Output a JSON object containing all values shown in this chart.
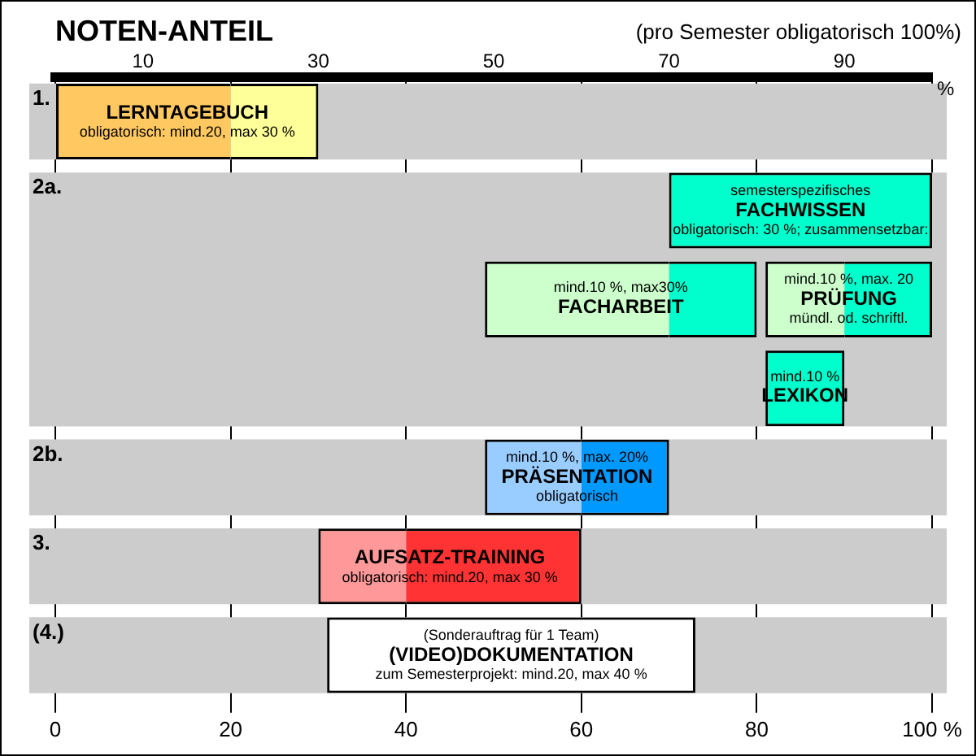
{
  "chart_data": {
    "type": "bar",
    "title": "NOTEN-ANTEIL",
    "subtitle": "(pro Semester obligatorisch 100%)",
    "orientation": "horizontal",
    "categories": [
      "1.",
      "2a.",
      null,
      null,
      "2b.",
      "3.",
      "(4.)"
    ],
    "xlim": [
      0,
      100
    ],
    "xticks": [
      0,
      20,
      40,
      60,
      80,
      {
        "value": 100,
        "label": "100 %"
      }
    ],
    "x2lim": [
      0,
      100
    ],
    "x2ticks": [
      10,
      30,
      50,
      70,
      90
    ],
    "x2label": "%",
    "grid": "x",
    "legend": false,
    "series": [
      {
        "color": "#ffc860",
        "base": [
          0,
          null,
          null,
          null,
          null,
          null,
          null
        ],
        "values": [
          20,
          null,
          null,
          null,
          null,
          null,
          null
        ],
        "name": "LERNTAGEBUCH\nobligatorisch: mind.20, max 30 %"
      },
      {
        "color": "#ffff99",
        "base": [
          20,
          null,
          null,
          null,
          null,
          null,
          null
        ],
        "values": [
          10,
          null,
          null,
          null,
          null,
          null,
          null
        ]
      },
      {
        "color": "#00ffcc",
        "base": [
          null,
          70,
          null,
          null,
          null,
          null,
          null
        ],
        "values": [
          null,
          30,
          null,
          null,
          null,
          null,
          null
        ],
        "name": "semesterspezifisches\nFACHWISSEN\nobligatorisch: 30 %; zusammensetzbar:"
      },
      {
        "color": "#ccffcc",
        "base": [
          null,
          null,
          49,
          null,
          null,
          null,
          null
        ],
        "values": [
          null,
          null,
          21,
          null,
          null,
          null,
          null
        ],
        "name": "mind.10 %, max30%\nFACHARBEIT"
      },
      {
        "color": "#00ffcc",
        "base": [
          null,
          null,
          70,
          null,
          null,
          null,
          null
        ],
        "values": [
          null,
          null,
          10,
          null,
          null,
          null,
          null
        ]
      },
      {
        "color": "#ccffcc",
        "base": [
          null,
          null,
          81,
          null,
          null,
          null,
          null
        ],
        "values": [
          null,
          null,
          9,
          null,
          null,
          null,
          null
        ],
        "name": "mind.10 %, max. 20\nPRÜFUNG\nmündl. od. schriftl."
      },
      {
        "color": "#00ffcc",
        "base": [
          null,
          null,
          90,
          null,
          null,
          null,
          null
        ],
        "values": [
          null,
          null,
          10,
          null,
          null,
          null,
          null
        ]
      },
      {
        "color": "#00ffcc",
        "base": [
          null,
          null,
          null,
          81,
          null,
          null,
          null
        ],
        "values": [
          null,
          null,
          null,
          9,
          null,
          null,
          null
        ],
        "name": "mind.10 %\nLEXIKON"
      },
      {
        "color": "#99ccff",
        "base": [
          null,
          null,
          null,
          null,
          49,
          null,
          null
        ],
        "values": [
          null,
          null,
          null,
          null,
          11,
          null,
          null
        ],
        "name": "mind.10 %, max. 20%\nPRÄSENTATION\nobligatorisch"
      },
      {
        "color": "#0099ff",
        "base": [
          null,
          null,
          null,
          null,
          60,
          null,
          null
        ],
        "values": [
          null,
          null,
          null,
          null,
          10,
          null,
          null
        ]
      },
      {
        "color": "#ff9999",
        "base": [
          null,
          null,
          null,
          null,
          null,
          30,
          null
        ],
        "values": [
          null,
          null,
          null,
          null,
          null,
          10,
          null
        ],
        "name": "AUFSATZ-TRAINING\nobligatorisch: mind.20, max 30 %"
      },
      {
        "color": "#ff3333",
        "base": [
          null,
          null,
          null,
          null,
          null,
          40,
          null
        ],
        "values": [
          null,
          null,
          null,
          null,
          null,
          20,
          null
        ]
      },
      {
        "color": "#ffffff",
        "base": [
          null,
          null,
          null,
          null,
          null,
          null,
          31
        ],
        "values": [
          null,
          null,
          null,
          null,
          null,
          null,
          42
        ],
        "name": "(Sonderauftrag für 1 Team)\n(VIDEO)DOKUMENTATION\nzum Semesterprojekt: mind.20, max 40 %"
      }
    ]
  }
}
